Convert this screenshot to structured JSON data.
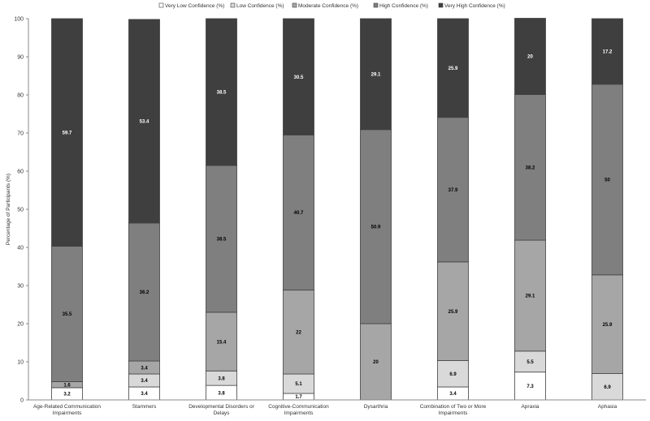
{
  "chart_data": {
    "type": "bar",
    "stacked": true,
    "ylabel": "Percentage of Participants (%)",
    "xlabel": "",
    "ylim": [
      0,
      100
    ],
    "yticks": [
      0,
      10,
      20,
      30,
      40,
      50,
      60,
      70,
      80,
      90,
      100
    ],
    "legend_position": "top-right",
    "categories": [
      [
        "Age-Related Communication",
        "Impairments"
      ],
      [
        "Stammers"
      ],
      [
        "Developmental Disorders or",
        "Delays"
      ],
      [
        "Cognitive-Communication",
        "Impairments"
      ],
      [
        "Dysarthria"
      ],
      [
        "Combination of Two or More",
        "Impairments"
      ],
      [
        "Apraxia"
      ],
      [
        "Aphasia"
      ]
    ],
    "series": [
      {
        "name": "Very Low Confidence (%)",
        "color": "#ffffff",
        "label_color": "#000000",
        "values": [
          3.2,
          3.4,
          3.8,
          1.7,
          0,
          3.4,
          7.3,
          0
        ],
        "labels": [
          "3.2",
          "3.4",
          "3.8",
          "1.7",
          "",
          "3.4",
          "7.3",
          ""
        ]
      },
      {
        "name": "Low Confidence (%)",
        "color": "#d9d9d9",
        "label_color": "#000000",
        "values": [
          0,
          3.4,
          3.8,
          5.1,
          0,
          6.9,
          5.5,
          6.9
        ],
        "labels": [
          "",
          "3.4",
          "3.8",
          "5.1",
          "",
          "6.9",
          "5.5",
          "6.9"
        ]
      },
      {
        "name": "Moderate Confidence (%)",
        "color": "#a6a6a6",
        "label_color": "#000000",
        "values": [
          1.6,
          3.4,
          15.4,
          22,
          20,
          25.9,
          29.1,
          25.9
        ],
        "labels": [
          "1.6",
          "3.4",
          "15.4",
          "22",
          "20",
          "25.9",
          "29.1",
          "25.9"
        ]
      },
      {
        "name": "High Confidence (%)",
        "color": "#7f7f7f",
        "label_color": "#000000",
        "values": [
          35.5,
          36.2,
          38.5,
          40.7,
          50.9,
          37.9,
          38.2,
          50
        ],
        "labels": [
          "35.5",
          "36.2",
          "38.5",
          "40.7",
          "50.9",
          "37.9",
          "38.2",
          "50"
        ]
      },
      {
        "name": "Very High Confidence (%)",
        "color": "#3f3f3f",
        "label_color": "#ffffff",
        "values": [
          59.7,
          53.4,
          38.5,
          30.5,
          29.1,
          25.9,
          20,
          17.2
        ],
        "labels": [
          "59.7",
          "53.4",
          "38.5",
          "30.5",
          "29.1",
          "25.9",
          "20",
          "17.2"
        ]
      }
    ]
  }
}
